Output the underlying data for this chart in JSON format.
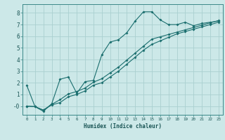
{
  "title": "",
  "xlabel": "Humidex (Indice chaleur)",
  "ylabel": "",
  "background_color": "#cce8e8",
  "grid_color": "#aad0d0",
  "line_color": "#1a6e6e",
  "xlim": [
    -0.5,
    23.5
  ],
  "ylim": [
    -0.75,
    8.75
  ],
  "xticks": [
    0,
    1,
    2,
    3,
    4,
    5,
    6,
    7,
    8,
    9,
    10,
    11,
    12,
    13,
    14,
    15,
    16,
    17,
    18,
    19,
    20,
    21,
    22,
    23
  ],
  "yticks": [
    0,
    1,
    2,
    3,
    4,
    5,
    6,
    7,
    8
  ],
  "ytick_labels": [
    "-0",
    "1",
    "2",
    "3",
    "4",
    "5",
    "6",
    "7",
    "8"
  ],
  "line1_x": [
    0,
    1,
    2,
    3,
    4,
    5,
    6,
    7,
    8,
    9,
    10,
    11,
    12,
    13,
    14,
    15,
    16,
    17,
    18,
    19,
    20,
    21,
    22,
    23
  ],
  "line1_y": [
    1.8,
    -0.05,
    -0.45,
    0.2,
    2.3,
    2.5,
    1.1,
    2.1,
    2.2,
    4.4,
    5.5,
    5.7,
    6.3,
    7.3,
    8.1,
    8.1,
    7.4,
    7.0,
    7.0,
    7.2,
    6.9,
    7.1,
    7.2,
    7.3
  ],
  "line2_x": [
    0,
    1,
    2,
    3,
    4,
    5,
    6,
    7,
    8,
    9,
    10,
    11,
    12,
    13,
    14,
    15,
    16,
    17,
    18,
    19,
    20,
    21,
    22,
    23
  ],
  "line2_y": [
    0.0,
    -0.05,
    -0.35,
    0.15,
    0.55,
    1.05,
    1.25,
    1.55,
    2.05,
    2.35,
    2.85,
    3.35,
    3.95,
    4.55,
    5.15,
    5.75,
    5.95,
    6.15,
    6.35,
    6.55,
    6.75,
    6.95,
    7.15,
    7.35
  ],
  "line3_x": [
    0,
    1,
    2,
    3,
    4,
    5,
    6,
    7,
    8,
    9,
    10,
    11,
    12,
    13,
    14,
    15,
    16,
    17,
    18,
    19,
    20,
    21,
    22,
    23
  ],
  "line3_y": [
    0.0,
    -0.05,
    -0.35,
    0.1,
    0.3,
    0.8,
    1.0,
    1.3,
    1.8,
    2.0,
    2.5,
    3.0,
    3.6,
    4.2,
    4.8,
    5.3,
    5.6,
    5.9,
    6.2,
    6.4,
    6.6,
    6.8,
    7.0,
    7.2
  ]
}
